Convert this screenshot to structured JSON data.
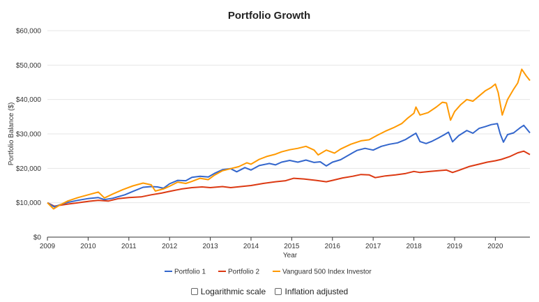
{
  "chart_data": {
    "type": "line",
    "title": "Portfolio Growth",
    "xlabel": "Year",
    "ylabel": "Portfolio Balance ($)",
    "xlim": [
      2009,
      2020.85
    ],
    "ylim": [
      0,
      60000
    ],
    "x_ticks": [
      "2009",
      "2010",
      "2011",
      "2012",
      "2013",
      "2014",
      "2015",
      "2016",
      "2017",
      "2018",
      "2019",
      "2020"
    ],
    "y_ticks": [
      "$0",
      "$10,000",
      "$20,000",
      "$30,000",
      "$40,000",
      "$50,000",
      "$60,000"
    ],
    "grid": true,
    "legend_position": "bottom",
    "series": [
      {
        "name": "Portfolio 1",
        "color": "#3366cc",
        "points": [
          [
            2009.0,
            10000
          ],
          [
            2009.17,
            8800
          ],
          [
            2009.33,
            9500
          ],
          [
            2009.5,
            10100
          ],
          [
            2009.75,
            10700
          ],
          [
            2010.0,
            11200
          ],
          [
            2010.25,
            11500
          ],
          [
            2010.4,
            10900
          ],
          [
            2010.6,
            11300
          ],
          [
            2010.9,
            12300
          ],
          [
            2011.1,
            13300
          ],
          [
            2011.35,
            14500
          ],
          [
            2011.55,
            14700
          ],
          [
            2011.7,
            14600
          ],
          [
            2011.85,
            14200
          ],
          [
            2012.0,
            15500
          ],
          [
            2012.2,
            16500
          ],
          [
            2012.4,
            16400
          ],
          [
            2012.55,
            17400
          ],
          [
            2012.75,
            17700
          ],
          [
            2012.95,
            17500
          ],
          [
            2013.1,
            18500
          ],
          [
            2013.3,
            19600
          ],
          [
            2013.5,
            19900
          ],
          [
            2013.65,
            19000
          ],
          [
            2013.85,
            20200
          ],
          [
            2014.0,
            19500
          ],
          [
            2014.2,
            20800
          ],
          [
            2014.45,
            21400
          ],
          [
            2014.6,
            21000
          ],
          [
            2014.75,
            21800
          ],
          [
            2014.95,
            22300
          ],
          [
            2015.15,
            21800
          ],
          [
            2015.35,
            22400
          ],
          [
            2015.55,
            21700
          ],
          [
            2015.7,
            21900
          ],
          [
            2015.85,
            20700
          ],
          [
            2016.0,
            21800
          ],
          [
            2016.2,
            22500
          ],
          [
            2016.45,
            24200
          ],
          [
            2016.6,
            25200
          ],
          [
            2016.8,
            25800
          ],
          [
            2017.0,
            25300
          ],
          [
            2017.2,
            26400
          ],
          [
            2017.4,
            27000
          ],
          [
            2017.6,
            27400
          ],
          [
            2017.8,
            28400
          ],
          [
            2017.95,
            29500
          ],
          [
            2018.05,
            30200
          ],
          [
            2018.15,
            27800
          ],
          [
            2018.3,
            27200
          ],
          [
            2018.45,
            27900
          ],
          [
            2018.6,
            28800
          ],
          [
            2018.75,
            29800
          ],
          [
            2018.85,
            30500
          ],
          [
            2018.95,
            27700
          ],
          [
            2019.1,
            29500
          ],
          [
            2019.3,
            31000
          ],
          [
            2019.45,
            30200
          ],
          [
            2019.6,
            31600
          ],
          [
            2019.75,
            32100
          ],
          [
            2019.9,
            32700
          ],
          [
            2020.05,
            33000
          ],
          [
            2020.12,
            30000
          ],
          [
            2020.2,
            27600
          ],
          [
            2020.3,
            29800
          ],
          [
            2020.45,
            30300
          ],
          [
            2020.6,
            31700
          ],
          [
            2020.7,
            32500
          ],
          [
            2020.85,
            30300
          ]
        ]
      },
      {
        "name": "Portfolio 2",
        "color": "#dc3912",
        "points": [
          [
            2009.0,
            10000
          ],
          [
            2009.17,
            9000
          ],
          [
            2009.33,
            9300
          ],
          [
            2009.5,
            9600
          ],
          [
            2009.75,
            10000
          ],
          [
            2010.0,
            10400
          ],
          [
            2010.25,
            10700
          ],
          [
            2010.5,
            10500
          ],
          [
            2010.75,
            11200
          ],
          [
            2011.0,
            11500
          ],
          [
            2011.3,
            11700
          ],
          [
            2011.55,
            12300
          ],
          [
            2011.8,
            12800
          ],
          [
            2012.0,
            13300
          ],
          [
            2012.3,
            14000
          ],
          [
            2012.55,
            14400
          ],
          [
            2012.8,
            14600
          ],
          [
            2013.0,
            14400
          ],
          [
            2013.3,
            14700
          ],
          [
            2013.5,
            14400
          ],
          [
            2013.75,
            14700
          ],
          [
            2014.0,
            15000
          ],
          [
            2014.3,
            15600
          ],
          [
            2014.6,
            16100
          ],
          [
            2014.85,
            16400
          ],
          [
            2015.05,
            17100
          ],
          [
            2015.3,
            16900
          ],
          [
            2015.6,
            16500
          ],
          [
            2015.85,
            16100
          ],
          [
            2016.0,
            16500
          ],
          [
            2016.25,
            17200
          ],
          [
            2016.5,
            17700
          ],
          [
            2016.7,
            18200
          ],
          [
            2016.9,
            18100
          ],
          [
            2017.05,
            17300
          ],
          [
            2017.3,
            17800
          ],
          [
            2017.55,
            18100
          ],
          [
            2017.8,
            18500
          ],
          [
            2018.0,
            19100
          ],
          [
            2018.15,
            18800
          ],
          [
            2018.4,
            19100
          ],
          [
            2018.6,
            19300
          ],
          [
            2018.8,
            19500
          ],
          [
            2018.95,
            18800
          ],
          [
            2019.1,
            19400
          ],
          [
            2019.35,
            20500
          ],
          [
            2019.6,
            21200
          ],
          [
            2019.8,
            21800
          ],
          [
            2020.0,
            22200
          ],
          [
            2020.15,
            22600
          ],
          [
            2020.35,
            23400
          ],
          [
            2020.55,
            24500
          ],
          [
            2020.7,
            25000
          ],
          [
            2020.85,
            24000
          ]
        ]
      },
      {
        "name": "Vanguard 500 Index Investor",
        "color": "#ff9900",
        "points": [
          [
            2009.0,
            10000
          ],
          [
            2009.15,
            8200
          ],
          [
            2009.3,
            9300
          ],
          [
            2009.5,
            10500
          ],
          [
            2009.75,
            11500
          ],
          [
            2010.0,
            12300
          ],
          [
            2010.25,
            13100
          ],
          [
            2010.4,
            11400
          ],
          [
            2010.6,
            12500
          ],
          [
            2010.85,
            13800
          ],
          [
            2011.1,
            14900
          ],
          [
            2011.35,
            15700
          ],
          [
            2011.55,
            15200
          ],
          [
            2011.65,
            13400
          ],
          [
            2011.85,
            14000
          ],
          [
            2012.0,
            14800
          ],
          [
            2012.2,
            16000
          ],
          [
            2012.4,
            15600
          ],
          [
            2012.55,
            16200
          ],
          [
            2012.75,
            17100
          ],
          [
            2012.95,
            16700
          ],
          [
            2013.1,
            18000
          ],
          [
            2013.3,
            19300
          ],
          [
            2013.5,
            19900
          ],
          [
            2013.7,
            20500
          ],
          [
            2013.9,
            21600
          ],
          [
            2014.0,
            21200
          ],
          [
            2014.2,
            22600
          ],
          [
            2014.4,
            23500
          ],
          [
            2014.6,
            24100
          ],
          [
            2014.75,
            24800
          ],
          [
            2014.95,
            25400
          ],
          [
            2015.15,
            25800
          ],
          [
            2015.35,
            26400
          ],
          [
            2015.55,
            25300
          ],
          [
            2015.65,
            23900
          ],
          [
            2015.85,
            25300
          ],
          [
            2016.05,
            24400
          ],
          [
            2016.2,
            25600
          ],
          [
            2016.45,
            27000
          ],
          [
            2016.7,
            28000
          ],
          [
            2016.9,
            28300
          ],
          [
            2017.1,
            29600
          ],
          [
            2017.3,
            30800
          ],
          [
            2017.5,
            31800
          ],
          [
            2017.7,
            33000
          ],
          [
            2017.85,
            34600
          ],
          [
            2018.0,
            36000
          ],
          [
            2018.05,
            37800
          ],
          [
            2018.15,
            35500
          ],
          [
            2018.35,
            36200
          ],
          [
            2018.55,
            37800
          ],
          [
            2018.7,
            39200
          ],
          [
            2018.8,
            39000
          ],
          [
            2018.9,
            34000
          ],
          [
            2019.0,
            36500
          ],
          [
            2019.15,
            38500
          ],
          [
            2019.3,
            40000
          ],
          [
            2019.45,
            39500
          ],
          [
            2019.6,
            41000
          ],
          [
            2019.75,
            42500
          ],
          [
            2019.9,
            43500
          ],
          [
            2020.0,
            44500
          ],
          [
            2020.07,
            42000
          ],
          [
            2020.17,
            35500
          ],
          [
            2020.3,
            40000
          ],
          [
            2020.45,
            43000
          ],
          [
            2020.55,
            44800
          ],
          [
            2020.65,
            48800
          ],
          [
            2020.75,
            47000
          ],
          [
            2020.85,
            45500
          ]
        ]
      }
    ]
  },
  "options": {
    "log_scale_label": "Logarithmic scale",
    "inflation_label": "Inflation adjusted"
  }
}
